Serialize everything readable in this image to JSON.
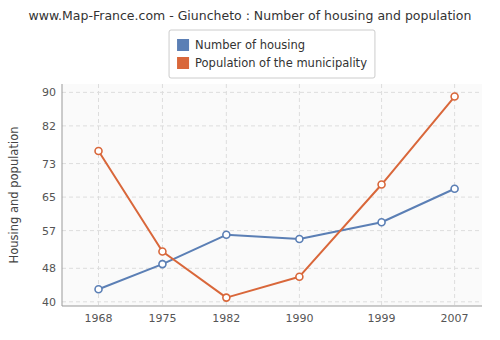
{
  "chart_data": {
    "type": "line",
    "title": "www.Map-France.com - Giuncheto : Number of housing and population",
    "ylabel": "Housing and population",
    "x": [
      1968,
      1975,
      1982,
      1990,
      1999,
      2007
    ],
    "series": [
      {
        "name": "Number of housing",
        "color": "#5b7fb5",
        "values": [
          43,
          49,
          56,
          55,
          59,
          67
        ]
      },
      {
        "name": "Population of the municipality",
        "color": "#d9673a",
        "values": [
          76,
          52,
          41,
          46,
          68,
          89
        ]
      }
    ],
    "xlim": [
      1964,
      2010
    ],
    "xticks": [
      1968,
      1975,
      1982,
      1990,
      1999,
      2007
    ],
    "ylim": [
      39,
      92
    ],
    "yticks": [
      40,
      48,
      57,
      65,
      73,
      82,
      90
    ],
    "grid": true,
    "legend": "top",
    "marker": "circle"
  }
}
